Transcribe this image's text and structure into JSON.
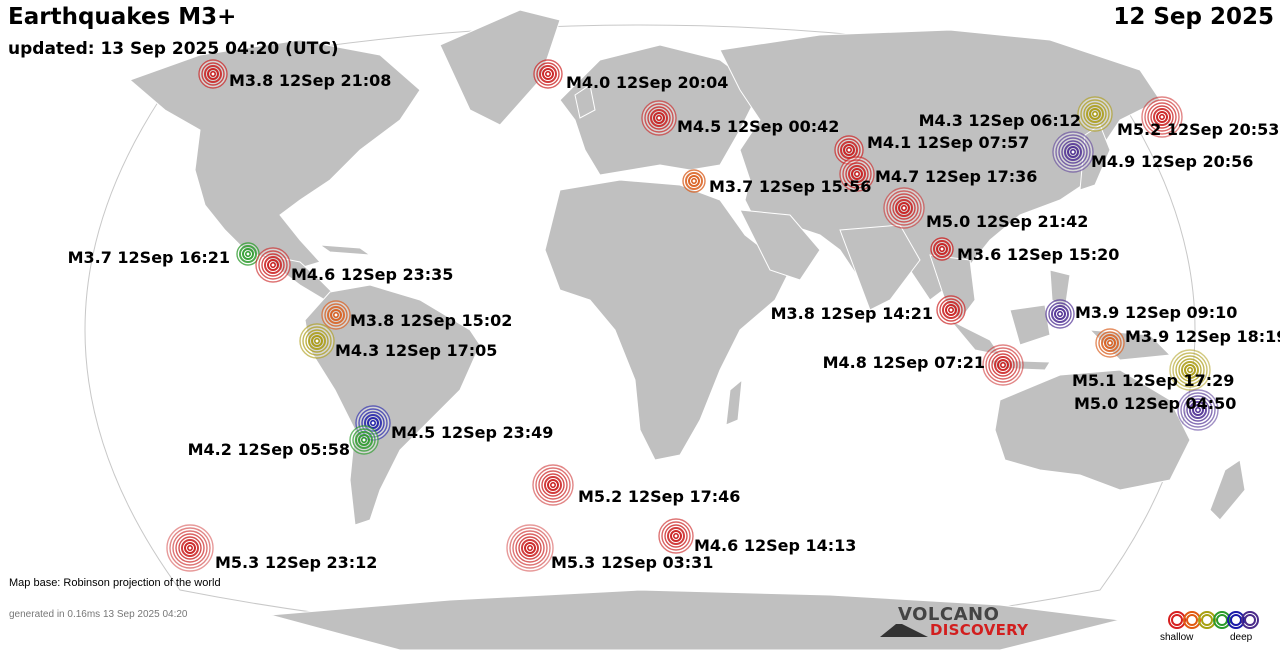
{
  "header": {
    "title": "Earthquakes M3+",
    "date": "12 Sep 2025",
    "updated": "updated: 13 Sep 2025 04:20 (UTC)"
  },
  "footer": {
    "credit": "Map base: Robinson projection of the world",
    "generated": "generated in 0.16ms 13 Sep 2025 04:20"
  },
  "logo": {
    "line1": "VOLCANO",
    "line2": "DISCOVERY"
  },
  "legend": {
    "shallow": "shallow",
    "deep": "deep",
    "colors": [
      "#d62020",
      "#e05a10",
      "#a8a010",
      "#2a9a2a",
      "#1a1aa8",
      "#4a2a8a"
    ]
  },
  "map": {
    "land_color": "#c0c0c0",
    "border_color": "#ffffff"
  },
  "quakes": [
    {
      "label": "M3.8 12Sep 21:08",
      "mag": 3.8,
      "depth": "shallow"
    },
    {
      "label": "M4.0 12Sep 20:04",
      "mag": 4.0,
      "depth": "shallow"
    },
    {
      "label": "M4.5 12Sep 00:42",
      "mag": 4.5,
      "depth": "shallow"
    },
    {
      "label": "M4.1 12Sep 07:57",
      "mag": 4.1,
      "depth": "shallow"
    },
    {
      "label": "M4.7 12Sep 17:36",
      "mag": 4.7,
      "depth": "shallow"
    },
    {
      "label": "M3.7 12Sep 15:56",
      "mag": 3.7,
      "depth": "shallow-mid"
    },
    {
      "label": "M5.0 12Sep 21:42",
      "mag": 5.0,
      "depth": "shallow"
    },
    {
      "label": "M3.6 12Sep 15:20",
      "mag": 3.6,
      "depth": "shallow"
    },
    {
      "label": "M4.3 12Sep 06:12",
      "mag": 4.3,
      "depth": "intermediate"
    },
    {
      "label": "M5.2 12Sep 20:53",
      "mag": 5.2,
      "depth": "shallow"
    },
    {
      "label": "M4.9 12Sep 20:56",
      "mag": 4.9,
      "depth": "deep"
    },
    {
      "label": "M3.7 12Sep 16:21",
      "mag": 3.7,
      "depth": "mid"
    },
    {
      "label": "M4.6 12Sep 23:35",
      "mag": 4.6,
      "depth": "shallow"
    },
    {
      "label": "M3.8 12Sep 15:02",
      "mag": 3.8,
      "depth": "shallow-mid"
    },
    {
      "label": "M4.3 12Sep 17:05",
      "mag": 4.3,
      "depth": "intermediate"
    },
    {
      "label": "M4.5 12Sep 23:49",
      "mag": 4.5,
      "depth": "very-deep"
    },
    {
      "label": "M4.2 12Sep 05:58",
      "mag": 4.2,
      "depth": "mid"
    },
    {
      "label": "M3.8 12Sep 14:21",
      "mag": 3.8,
      "depth": "shallow"
    },
    {
      "label": "M3.9 12Sep 09:10",
      "mag": 3.9,
      "depth": "deep"
    },
    {
      "label": "M3.9 12Sep 18:19",
      "mag": 3.9,
      "depth": "shallow-mid"
    },
    {
      "label": "M4.8 12Sep 07:21",
      "mag": 4.8,
      "depth": "shallow"
    },
    {
      "label": "M5.1 12Sep 17:29",
      "mag": 5.1,
      "depth": "intermediate"
    },
    {
      "label": "M5.0 12Sep 04:50",
      "mag": 5.0,
      "depth": "deep"
    },
    {
      "label": "M5.2 12Sep 17:46",
      "mag": 5.2,
      "depth": "shallow"
    },
    {
      "label": "M5.3 12Sep 23:12",
      "mag": 5.3,
      "depth": "shallow"
    },
    {
      "label": "M5.3 12Sep 03:31",
      "mag": 5.3,
      "depth": "shallow"
    },
    {
      "label": "M4.6 12Sep 14:13",
      "mag": 4.6,
      "depth": "shallow"
    }
  ]
}
